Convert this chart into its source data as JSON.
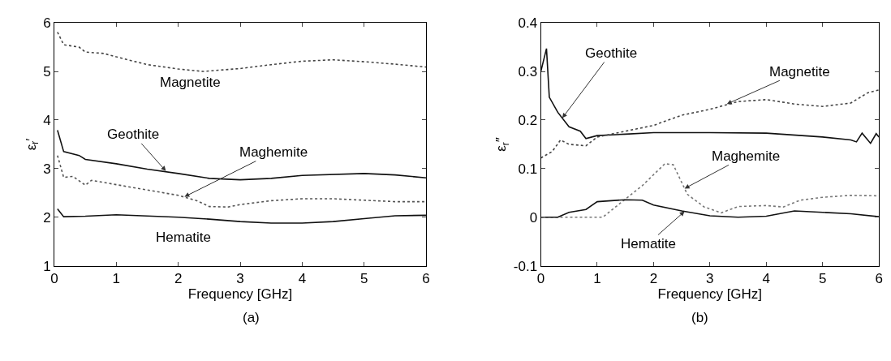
{
  "chart_data": [
    {
      "type": "line",
      "xlabel": "Frequency [GHz]",
      "ylabel": "ε$_{r}$′",
      "xlim": [
        0,
        6
      ],
      "ylim": [
        1,
        6
      ],
      "xticks": [
        0,
        1,
        2,
        3,
        4,
        5,
        6
      ],
      "yticks": [
        1,
        2,
        3,
        4,
        5,
        6
      ],
      "series": [
        {
          "color": "#444444",
          "line_style": "dotted",
          "x": [
            0.05,
            0.15,
            0.4,
            0.5,
            0.8,
            1.0,
            1.5,
            2.0,
            2.4,
            3.0,
            3.5,
            4.0,
            4.5,
            5.0,
            5.5,
            6.0
          ],
          "values": [
            5.81,
            5.55,
            5.5,
            5.4,
            5.37,
            5.3,
            5.14,
            5.05,
            5.0,
            5.06,
            5.14,
            5.21,
            5.24,
            5.2,
            5.15,
            5.09
          ]
        },
        {
          "color": "#111111",
          "line_style": "solid",
          "x": [
            0.05,
            0.15,
            0.4,
            0.5,
            1.0,
            1.5,
            2.0,
            2.5,
            3.0,
            3.5,
            4.0,
            5.0,
            5.5,
            6.0
          ],
          "values": [
            3.79,
            3.35,
            3.27,
            3.19,
            3.1,
            2.99,
            2.9,
            2.8,
            2.77,
            2.8,
            2.86,
            2.9,
            2.87,
            2.81
          ]
        },
        {
          "color": "#555555",
          "line_style": "dotted",
          "x": [
            0.05,
            0.15,
            0.3,
            0.5,
            0.6,
            1.0,
            1.5,
            2.0,
            2.3,
            2.5,
            2.8,
            3.0,
            3.5,
            4.0,
            4.5,
            5.0,
            5.5,
            6.0
          ],
          "values": [
            3.27,
            2.82,
            2.84,
            2.66,
            2.76,
            2.67,
            2.56,
            2.45,
            2.34,
            2.22,
            2.21,
            2.26,
            2.34,
            2.38,
            2.38,
            2.35,
            2.32,
            2.32
          ]
        },
        {
          "color": "#111111",
          "line_style": "solid",
          "x": [
            0.05,
            0.15,
            0.5,
            1.0,
            2.0,
            2.5,
            3.0,
            3.5,
            4.0,
            4.5,
            5.0,
            5.5,
            6.0
          ],
          "values": [
            2.17,
            2.01,
            2.02,
            2.05,
            2.0,
            1.96,
            1.91,
            1.88,
            1.88,
            1.91,
            1.97,
            2.03,
            2.04
          ]
        }
      ],
      "annotations": [
        "Magnetite",
        {
          "text": "Geothite",
          "x": 1.8,
          "y": 2.95
        },
        {
          "text": "Maghemite",
          "x": 2.1,
          "y": 2.42
        },
        "Hematite",
        "(a)"
      ]
    },
    {
      "type": "line",
      "xlabel": "Frequency [GHz]",
      "ylabel": "ε$_{r}$″",
      "xlim": [
        0,
        6
      ],
      "ylim": [
        -0.1,
        0.4
      ],
      "xticks": [
        0,
        1,
        2,
        3,
        4,
        5,
        6
      ],
      "yticks": [
        -0.1,
        0,
        0.1,
        0.2,
        0.3,
        0.4
      ],
      "series": [
        {
          "color": "#111111",
          "line_style": "solid",
          "x": [
            0,
            0.1,
            0.15,
            0.3,
            0.5,
            0.7,
            0.8,
            1.0,
            1.5,
            2.0,
            3.0,
            4.0,
            5.0,
            5.5,
            5.6,
            5.7,
            5.85,
            5.95,
            6.0
          ],
          "values": [
            0.3,
            0.347,
            0.247,
            0.216,
            0.186,
            0.177,
            0.162,
            0.168,
            0.171,
            0.174,
            0.174,
            0.173,
            0.165,
            0.159,
            0.155,
            0.173,
            0.152,
            0.172,
            0.165
          ]
        },
        {
          "color": "#444444",
          "line_style": "dotted",
          "x": [
            0,
            0.2,
            0.35,
            0.5,
            0.8,
            1.0,
            1.5,
            2.0,
            2.5,
            3.0,
            3.5,
            4.0,
            4.5,
            5.0,
            5.5,
            5.8,
            6.0
          ],
          "values": [
            0.122,
            0.135,
            0.159,
            0.15,
            0.147,
            0.165,
            0.177,
            0.189,
            0.21,
            0.222,
            0.238,
            0.242,
            0.233,
            0.228,
            0.235,
            0.256,
            0.262
          ]
        },
        {
          "color": "#777777",
          "line_style": "dotted",
          "x": [
            0,
            1.1,
            1.4,
            1.8,
            2.2,
            2.35,
            2.6,
            2.9,
            3.2,
            3.5,
            4.0,
            4.3,
            4.6,
            5.0,
            5.5,
            6.0
          ],
          "values": [
            0,
            0,
            0.028,
            0.065,
            0.11,
            0.108,
            0.047,
            0.021,
            0.009,
            0.022,
            0.024,
            0.021,
            0.035,
            0.041,
            0.045,
            0.044
          ]
        },
        {
          "color": "#111111",
          "line_style": "solid",
          "x": [
            0,
            0.3,
            0.5,
            0.8,
            1.0,
            1.5,
            1.8,
            2.0,
            2.5,
            3.0,
            3.5,
            4.0,
            4.5,
            5.0,
            5.5,
            6.0
          ],
          "values": [
            0,
            0,
            0.01,
            0.016,
            0.032,
            0.036,
            0.035,
            0.025,
            0.013,
            0.003,
            0,
            0.002,
            0.013,
            0.01,
            0.007,
            0.001
          ]
        }
      ],
      "annotations": [
        {
          "text": "Geothite",
          "x": 0.38,
          "y": 0.204
        },
        {
          "text": "Magnetite",
          "x": 3.3,
          "y": 0.233
        },
        {
          "text": "Maghemite",
          "x": 2.55,
          "y": 0.059
        },
        {
          "text": "Hematite",
          "x": 2.55,
          "y": 0.012
        },
        "(b)"
      ]
    }
  ]
}
